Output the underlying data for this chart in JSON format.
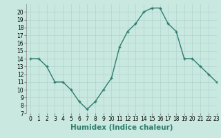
{
  "x": [
    0,
    1,
    2,
    3,
    4,
    5,
    6,
    7,
    8,
    9,
    10,
    11,
    12,
    13,
    14,
    15,
    16,
    17,
    18,
    19,
    20,
    21,
    22,
    23
  ],
  "y": [
    14,
    14,
    13,
    11,
    11,
    10,
    8.5,
    7.5,
    8.5,
    10,
    11.5,
    15.5,
    17.5,
    18.5,
    20,
    20.5,
    20.5,
    18.5,
    17.5,
    14,
    14,
    13,
    12,
    11
  ],
  "line_color": "#2e7d6e",
  "marker": "+",
  "marker_color": "#2e7d6e",
  "bg_color": "#c8e8e0",
  "grid_color": "#b0d4cc",
  "xlabel": "Humidex (Indice chaleur)",
  "ylim": [
    7,
    21
  ],
  "xlim": [
    -0.5,
    23
  ],
  "yticks": [
    7,
    8,
    9,
    10,
    11,
    12,
    13,
    14,
    15,
    16,
    17,
    18,
    19,
    20
  ],
  "xticks": [
    0,
    1,
    2,
    3,
    4,
    5,
    6,
    7,
    8,
    9,
    10,
    11,
    12,
    13,
    14,
    15,
    16,
    17,
    18,
    19,
    20,
    21,
    22,
    23
  ],
  "tick_label_fontsize": 5.5,
  "xlabel_fontsize": 7.5,
  "xlabel_fontweight": "bold",
  "linewidth": 1.0,
  "markersize": 3.5
}
